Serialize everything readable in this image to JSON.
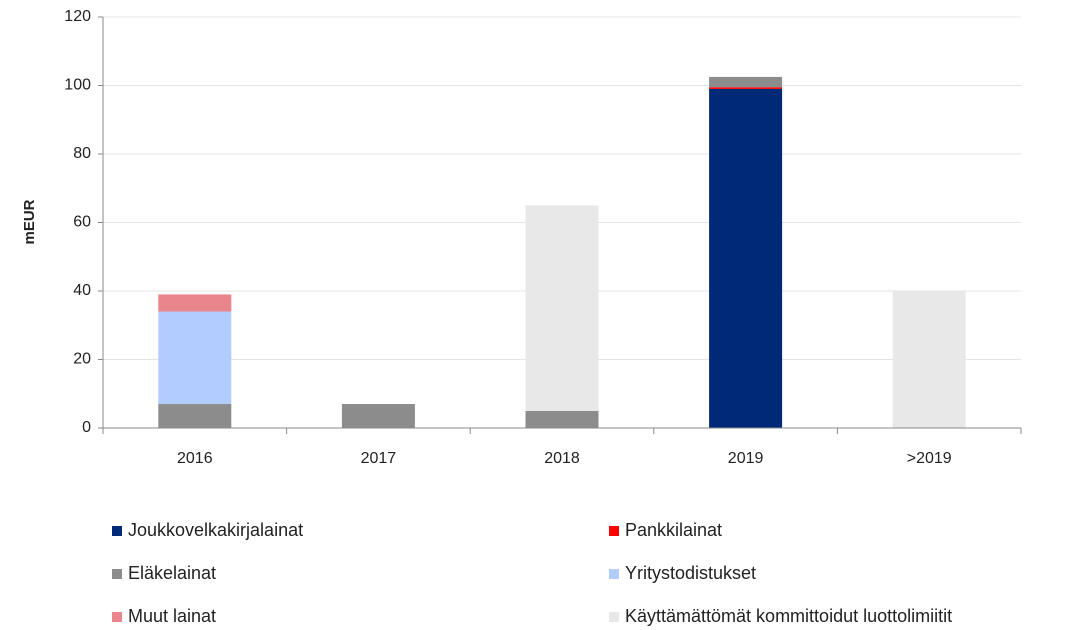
{
  "chart_data": {
    "type": "stacked_bar",
    "ylabel": "mEUR",
    "categories": [
      "2016",
      "2017",
      "2018",
      "2019",
      ">2019"
    ],
    "series": [
      {
        "name": "Joukkovelkakirjalainat",
        "color": "#002a78",
        "values": [
          0,
          0,
          0,
          99,
          0
        ]
      },
      {
        "name": "Pankkilainat",
        "color": "#ff0000",
        "values": [
          0,
          0,
          0,
          0.5,
          0
        ]
      },
      {
        "name": "Eläkelainat",
        "color": "#8c8c8c",
        "values": [
          7,
          7,
          5,
          3,
          0
        ]
      },
      {
        "name": "Yritystodistukset",
        "color": "#b3ccff",
        "values": [
          27,
          0,
          0,
          0,
          0
        ]
      },
      {
        "name": "Muut lainat",
        "color": "#e8868c",
        "values": [
          5,
          0,
          0,
          0,
          0
        ]
      },
      {
        "name": "Käyttämättömät kommittoidut luottolimiitit",
        "color": "#e8e8e8",
        "values": [
          0,
          0,
          60,
          0,
          40
        ]
      }
    ],
    "ylim": [
      0,
      120
    ],
    "yticks": [
      0,
      20,
      40,
      60,
      80,
      100,
      120
    ],
    "grid": true
  }
}
